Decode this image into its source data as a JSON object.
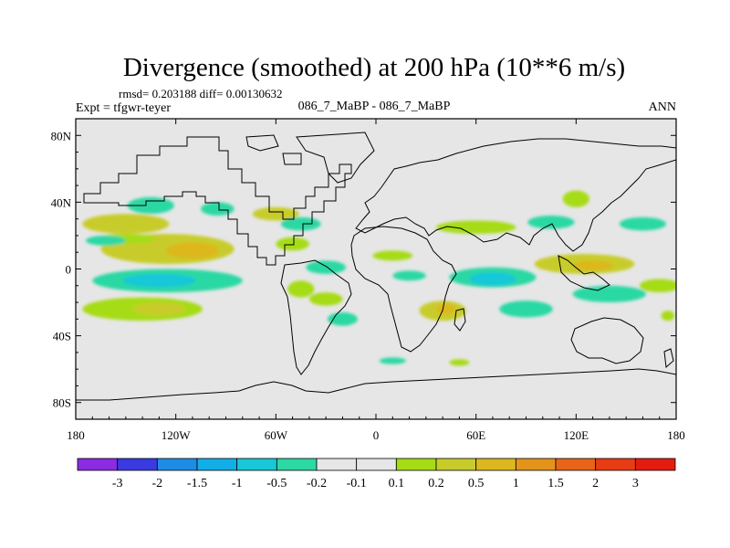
{
  "chart_data": {
    "type": "heatmap",
    "title": "Divergence (smoothed) at 200 hPa (10**6 m/s)",
    "stats_line": "rmsd= 0.203188 diff= 0.00130632",
    "experiment_label": "Expt = tfgwr-teyer",
    "case_label": "086_7_MaBP - 086_7_MaBP",
    "season_label": "ANN",
    "x_axis": {
      "range": [
        -180,
        180
      ],
      "ticks": [
        {
          "value": -180,
          "label": "180"
        },
        {
          "value": -120,
          "label": "120W"
        },
        {
          "value": -60,
          "label": "60W"
        },
        {
          "value": 0,
          "label": "0"
        },
        {
          "value": 60,
          "label": "60E"
        },
        {
          "value": 120,
          "label": "120E"
        },
        {
          "value": 180,
          "label": "180"
        }
      ]
    },
    "y_axis": {
      "range": [
        -90,
        90
      ],
      "ticks": [
        {
          "value": 80,
          "label": "80N"
        },
        {
          "value": 40,
          "label": "40N"
        },
        {
          "value": 0,
          "label": "0"
        },
        {
          "value": -40,
          "label": "40S"
        },
        {
          "value": -80,
          "label": "80S"
        }
      ]
    },
    "colorbar": {
      "colors": [
        "#8b2be2",
        "#3a3ae0",
        "#1e8ce6",
        "#12aee8",
        "#18c8d8",
        "#2cd8a4",
        "#e6e6e6",
        "#e6e6e6",
        "#a6dc14",
        "#c8cc2a",
        "#dcb81e",
        "#e4941a",
        "#e86418",
        "#e83c14",
        "#e41c10"
      ],
      "labels": [
        "-3",
        "-2",
        "-1.5",
        "-1",
        "-0.5",
        "-0.2",
        "-0.1",
        "0.1",
        "0.2",
        "0.5",
        "1",
        "1.5",
        "2",
        "3"
      ]
    },
    "regions": [
      {
        "name": "green-patch-w-pacific-40n",
        "color": "#2cd8a4",
        "lon": -135,
        "lat": 38,
        "rlon": 14,
        "rlat": 5
      },
      {
        "name": "olive-band-w-30n",
        "color": "#c8cc2a",
        "lon": -150,
        "lat": 27,
        "rlon": 26,
        "rlat": 6
      },
      {
        "name": "olive-band-pacific-10n",
        "color": "#c8cc2a",
        "lon": -125,
        "lat": 12,
        "rlon": 40,
        "rlat": 9
      },
      {
        "name": "orange-core-pacific-10n",
        "color": "#dcb81e",
        "lon": -110,
        "lat": 11,
        "rlon": 16,
        "rlat": 5
      },
      {
        "name": "lime-rim-pacific-10n",
        "color": "#a6dc14",
        "lon": -150,
        "lat": 18,
        "rlon": 18,
        "rlat": 3
      },
      {
        "name": "blue-band-pacific-8s",
        "color": "#2cd8a4",
        "lon": -125,
        "lat": -7,
        "rlon": 45,
        "rlat": 7
      },
      {
        "name": "blue-core-pacific-8s",
        "color": "#18c8d8",
        "lon": -130,
        "lat": -7,
        "rlon": 22,
        "rlat": 4
      },
      {
        "name": "lime-band-s-pacific-25s",
        "color": "#a6dc14",
        "lon": -140,
        "lat": -24,
        "rlon": 36,
        "rlat": 7
      },
      {
        "name": "olive-core-s-pacific-25s",
        "color": "#c8cc2a",
        "lon": -130,
        "lat": -24,
        "rlon": 16,
        "rlat": 4
      },
      {
        "name": "green-strip-w-pacific-10n",
        "color": "#2cd8a4",
        "lon": -162,
        "lat": 17,
        "rlon": 12,
        "rlat": 3
      },
      {
        "name": "green-patch-n-america-40n",
        "color": "#2cd8a4",
        "lon": -95,
        "lat": 36,
        "rlon": 10,
        "rlat": 4
      },
      {
        "name": "olive-patch-n-america-35n",
        "color": "#c8cc2a",
        "lon": -60,
        "lat": 33,
        "rlon": 14,
        "rlat": 4
      },
      {
        "name": "green-patch-n-atlantic-30n",
        "color": "#2cd8a4",
        "lon": -45,
        "lat": 27,
        "rlon": 12,
        "rlat": 4
      },
      {
        "name": "lime-patch-atlantic-15n",
        "color": "#a6dc14",
        "lon": -50,
        "lat": 15,
        "rlon": 10,
        "rlat": 4
      },
      {
        "name": "green-band-atlantic-0",
        "color": "#2cd8a4",
        "lon": -30,
        "lat": 1,
        "rlon": 12,
        "rlat": 4
      },
      {
        "name": "lime-patch-s-america-15s",
        "color": "#a6dc14",
        "lon": -45,
        "lat": -12,
        "rlon": 8,
        "rlat": 5
      },
      {
        "name": "lime-patch-s-atlantic-20s",
        "color": "#a6dc14",
        "lon": -30,
        "lat": -18,
        "rlon": 10,
        "rlat": 4
      },
      {
        "name": "green-patch-s-atlantic-30s",
        "color": "#2cd8a4",
        "lon": -20,
        "lat": -30,
        "rlon": 9,
        "rlat": 4
      },
      {
        "name": "lime-patch-africa-10n",
        "color": "#a6dc14",
        "lon": 10,
        "lat": 8,
        "rlon": 12,
        "rlat": 3
      },
      {
        "name": "green-patch-africa-0",
        "color": "#2cd8a4",
        "lon": 20,
        "lat": -4,
        "rlon": 10,
        "rlat": 3
      },
      {
        "name": "olive-patch-s-africa-25s",
        "color": "#c8cc2a",
        "lon": 40,
        "lat": -25,
        "rlon": 14,
        "rlat": 6
      },
      {
        "name": "orange-core-s-africa-25s",
        "color": "#dcb81e",
        "lon": 42,
        "lat": -24,
        "rlon": 6,
        "rlat": 3
      },
      {
        "name": "green-band-indian-5s",
        "color": "#2cd8a4",
        "lon": 70,
        "lat": -5,
        "rlon": 26,
        "rlat": 6
      },
      {
        "name": "blue-core-indian-5s",
        "color": "#18c8d8",
        "lon": 70,
        "lat": -6,
        "rlon": 14,
        "rlat": 4
      },
      {
        "name": "green-patch-s-indian-25s",
        "color": "#2cd8a4",
        "lon": 90,
        "lat": -24,
        "rlon": 16,
        "rlat": 5
      },
      {
        "name": "lime-band-asia-25n",
        "color": "#a6dc14",
        "lon": 60,
        "lat": 25,
        "rlon": 24,
        "rlat": 4
      },
      {
        "name": "green-patch-asia-30n",
        "color": "#2cd8a4",
        "lon": 105,
        "lat": 28,
        "rlon": 14,
        "rlat": 4
      },
      {
        "name": "lime-patch-china-40n",
        "color": "#a6dc14",
        "lon": 120,
        "lat": 42,
        "rlon": 8,
        "rlat": 5
      },
      {
        "name": "olive-band-w-pacific-5n",
        "color": "#c8cc2a",
        "lon": 125,
        "lat": 3,
        "rlon": 30,
        "rlat": 6
      },
      {
        "name": "orange-core-w-pacific-5n",
        "color": "#dcb81e",
        "lon": 130,
        "lat": 2,
        "rlon": 12,
        "rlat": 3
      },
      {
        "name": "green-patch-n-pacific-30n",
        "color": "#2cd8a4",
        "lon": 160,
        "lat": 27,
        "rlon": 14,
        "rlat": 4
      },
      {
        "name": "green-band-s-pacific-15s",
        "color": "#2cd8a4",
        "lon": 140,
        "lat": -15,
        "rlon": 22,
        "rlat": 5
      },
      {
        "name": "lime-band-e-pacific-15s",
        "color": "#a6dc14",
        "lon": 170,
        "lat": -10,
        "rlon": 12,
        "rlat": 4
      },
      {
        "name": "green-patch-southern-ocean-55s",
        "color": "#2cd8a4",
        "lon": 10,
        "lat": -55,
        "rlon": 8,
        "rlat": 2
      },
      {
        "name": "lime-patch-southern-ocean-55s",
        "color": "#a6dc14",
        "lon": 50,
        "lat": -56,
        "rlon": 6,
        "rlat": 2
      },
      {
        "name": "lime-patch-e-pacific-25s",
        "color": "#a6dc14",
        "lon": 175,
        "lat": -28,
        "rlon": 4,
        "rlat": 3
      }
    ]
  }
}
